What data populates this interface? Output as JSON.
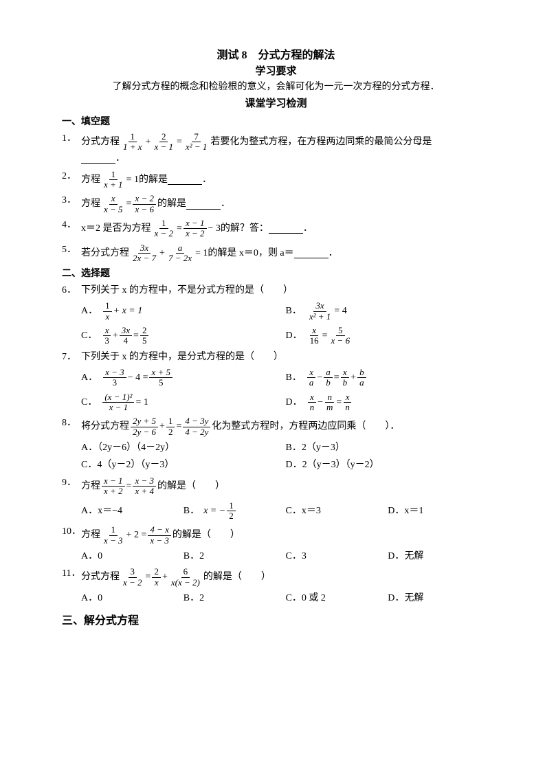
{
  "title": "测试 8　分式方程的解法",
  "subtitle": "学习要求",
  "intro": "了解分式方程的概念和检验根的意义，会解可化为一元一次方程的分式方程．",
  "section_head": "课堂学习检测",
  "cat1": "一、填空题",
  "q1": {
    "num": "1．",
    "pre": "分式方程",
    "mid": "若要化为整式方程，在方程两边同乘的最简公分母是",
    "tail": "．",
    "f1n": "1",
    "f1d": "1 + x",
    "p1": "+",
    "f2n": "2",
    "f2d": "x − 1",
    "eq": "=",
    "f3n": "7",
    "f3d": "x² − 1"
  },
  "q2": {
    "num": "2．",
    "pre": "方程",
    "f1n": "1",
    "f1d": "x + 1",
    "eq": "= 1",
    "mid": "的解是",
    "tail": "．"
  },
  "q3": {
    "num": "3．",
    "pre": "方程",
    "f1n": "x",
    "f1d": "x − 5",
    "eq": "=",
    "f2n": "x − 2",
    "f2d": "x − 6",
    "mid": "的解是",
    "tail": "．"
  },
  "q4": {
    "num": "4．",
    "pre": "x＝2 是否为方程",
    "f1n": "1",
    "f1d": "x − 2",
    "eq": "=",
    "f2n": "x − 1",
    "f2d": "x − 2",
    "m3": "− 3",
    "mid": "的解？答：",
    "tail": "．"
  },
  "q5": {
    "num": "5．",
    "pre": "若分式方程",
    "f1n": "3x",
    "f1d": "2x − 7",
    "p1": "+",
    "f2n": "a",
    "f2d": "7 − 2x",
    "eq": "= 1",
    "mid": "的解是 x＝0，则 a＝",
    "tail": "．"
  },
  "cat2": "二、选择题",
  "q6": {
    "num": "6．",
    "stem": "下列关于 x 的方程中，不是分式方程的是（　　）",
    "A": {
      "l": "A．",
      "f1n": "1",
      "f1d": "x",
      "t": "+ x = 1"
    },
    "B": {
      "l": "B．",
      "f1n": "3x",
      "f1d": "x² + 1",
      "t": "= 4"
    },
    "C": {
      "l": "C．",
      "f1n": "x",
      "f1d": "3",
      "p": "+",
      "f2n": "3x",
      "f2d": "4",
      "eq": "=",
      "f3n": "2",
      "f3d": "5"
    },
    "D": {
      "l": "D．",
      "f1n": "x",
      "f1d": "16",
      "eq": "=",
      "f2n": "5",
      "f2d": "x − 6"
    }
  },
  "q7": {
    "num": "7．",
    "stem": "下列关于 x 的方程中，是分式方程的是（　　）",
    "A": {
      "l": "A．",
      "f1n": "x − 3",
      "f1d": "3",
      "m": "− 4 =",
      "f2n": "x + 5",
      "f2d": "5"
    },
    "B": {
      "l": "B．",
      "f1n": "x",
      "f1d": "a",
      "m1": "−",
      "f2n": "a",
      "f2d": "b",
      "eq": "=",
      "f3n": "x",
      "f3d": "b",
      "m2": "+",
      "f4n": "b",
      "f4d": "a"
    },
    "C": {
      "l": "C．",
      "f1n": "(x − 1)²",
      "f1d": "x − 1",
      "t": "= 1"
    },
    "D": {
      "l": "D．",
      "f1n": "x",
      "f1d": "n",
      "m1": "−",
      "f2n": "n",
      "f2d": "m",
      "eq": "=",
      "f3n": "x",
      "f3d": "n"
    }
  },
  "q8": {
    "num": "8．",
    "pre": "将分式方程",
    "f1n": "2y + 5",
    "f1d": "2y − 6",
    "p1": "+",
    "f2n": "1",
    "f2d": "2",
    "eq": "=",
    "f3n": "4 − 3y",
    "f3d": "4 − 2y",
    "mid": "化为整式方程时，方程两边应同乘（　　）．",
    "A": "A．（2y－6）（4－2y）",
    "B": "B．2（y－3）",
    "C": "C．4（y－2）（y－3）",
    "D": "D．2（y－3）（y－2）"
  },
  "q9": {
    "num": "9．",
    "pre": "方程",
    "f1n": "x − 1",
    "f1d": "x + 2",
    "eq": "=",
    "f2n": "x − 3",
    "f2d": "x + 4",
    "mid": "的解是（　　）",
    "A": "A．x＝−4",
    "Bl": "B．",
    "Bpre": "x = −",
    "Bn": "1",
    "Bd": "2",
    "C": "C．x＝3",
    "D": "D．x＝1"
  },
  "q10": {
    "num": "10．",
    "pre": "方程",
    "f1n": "1",
    "f1d": "x − 3",
    "p1": "+ 2 =",
    "f2n": "4 − x",
    "f2d": "x − 3",
    "mid": "的解是（　　）",
    "A": "A．0",
    "B": "B．2",
    "C": "C．3",
    "D": "D．无解"
  },
  "q11": {
    "num": "11．",
    "pre": "分式方程",
    "f1n": "3",
    "f1d": "x − 2",
    "eq": "=",
    "f2n": "2",
    "f2d": "x",
    "p1": "+",
    "f3n": "6",
    "f3d": "x(x − 2)",
    "mid": "的解是（　　）",
    "A": "A．0",
    "B": "B．2",
    "C": "C．0 或 2",
    "D": "D．无解"
  },
  "cat3": "三、解分式方程"
}
